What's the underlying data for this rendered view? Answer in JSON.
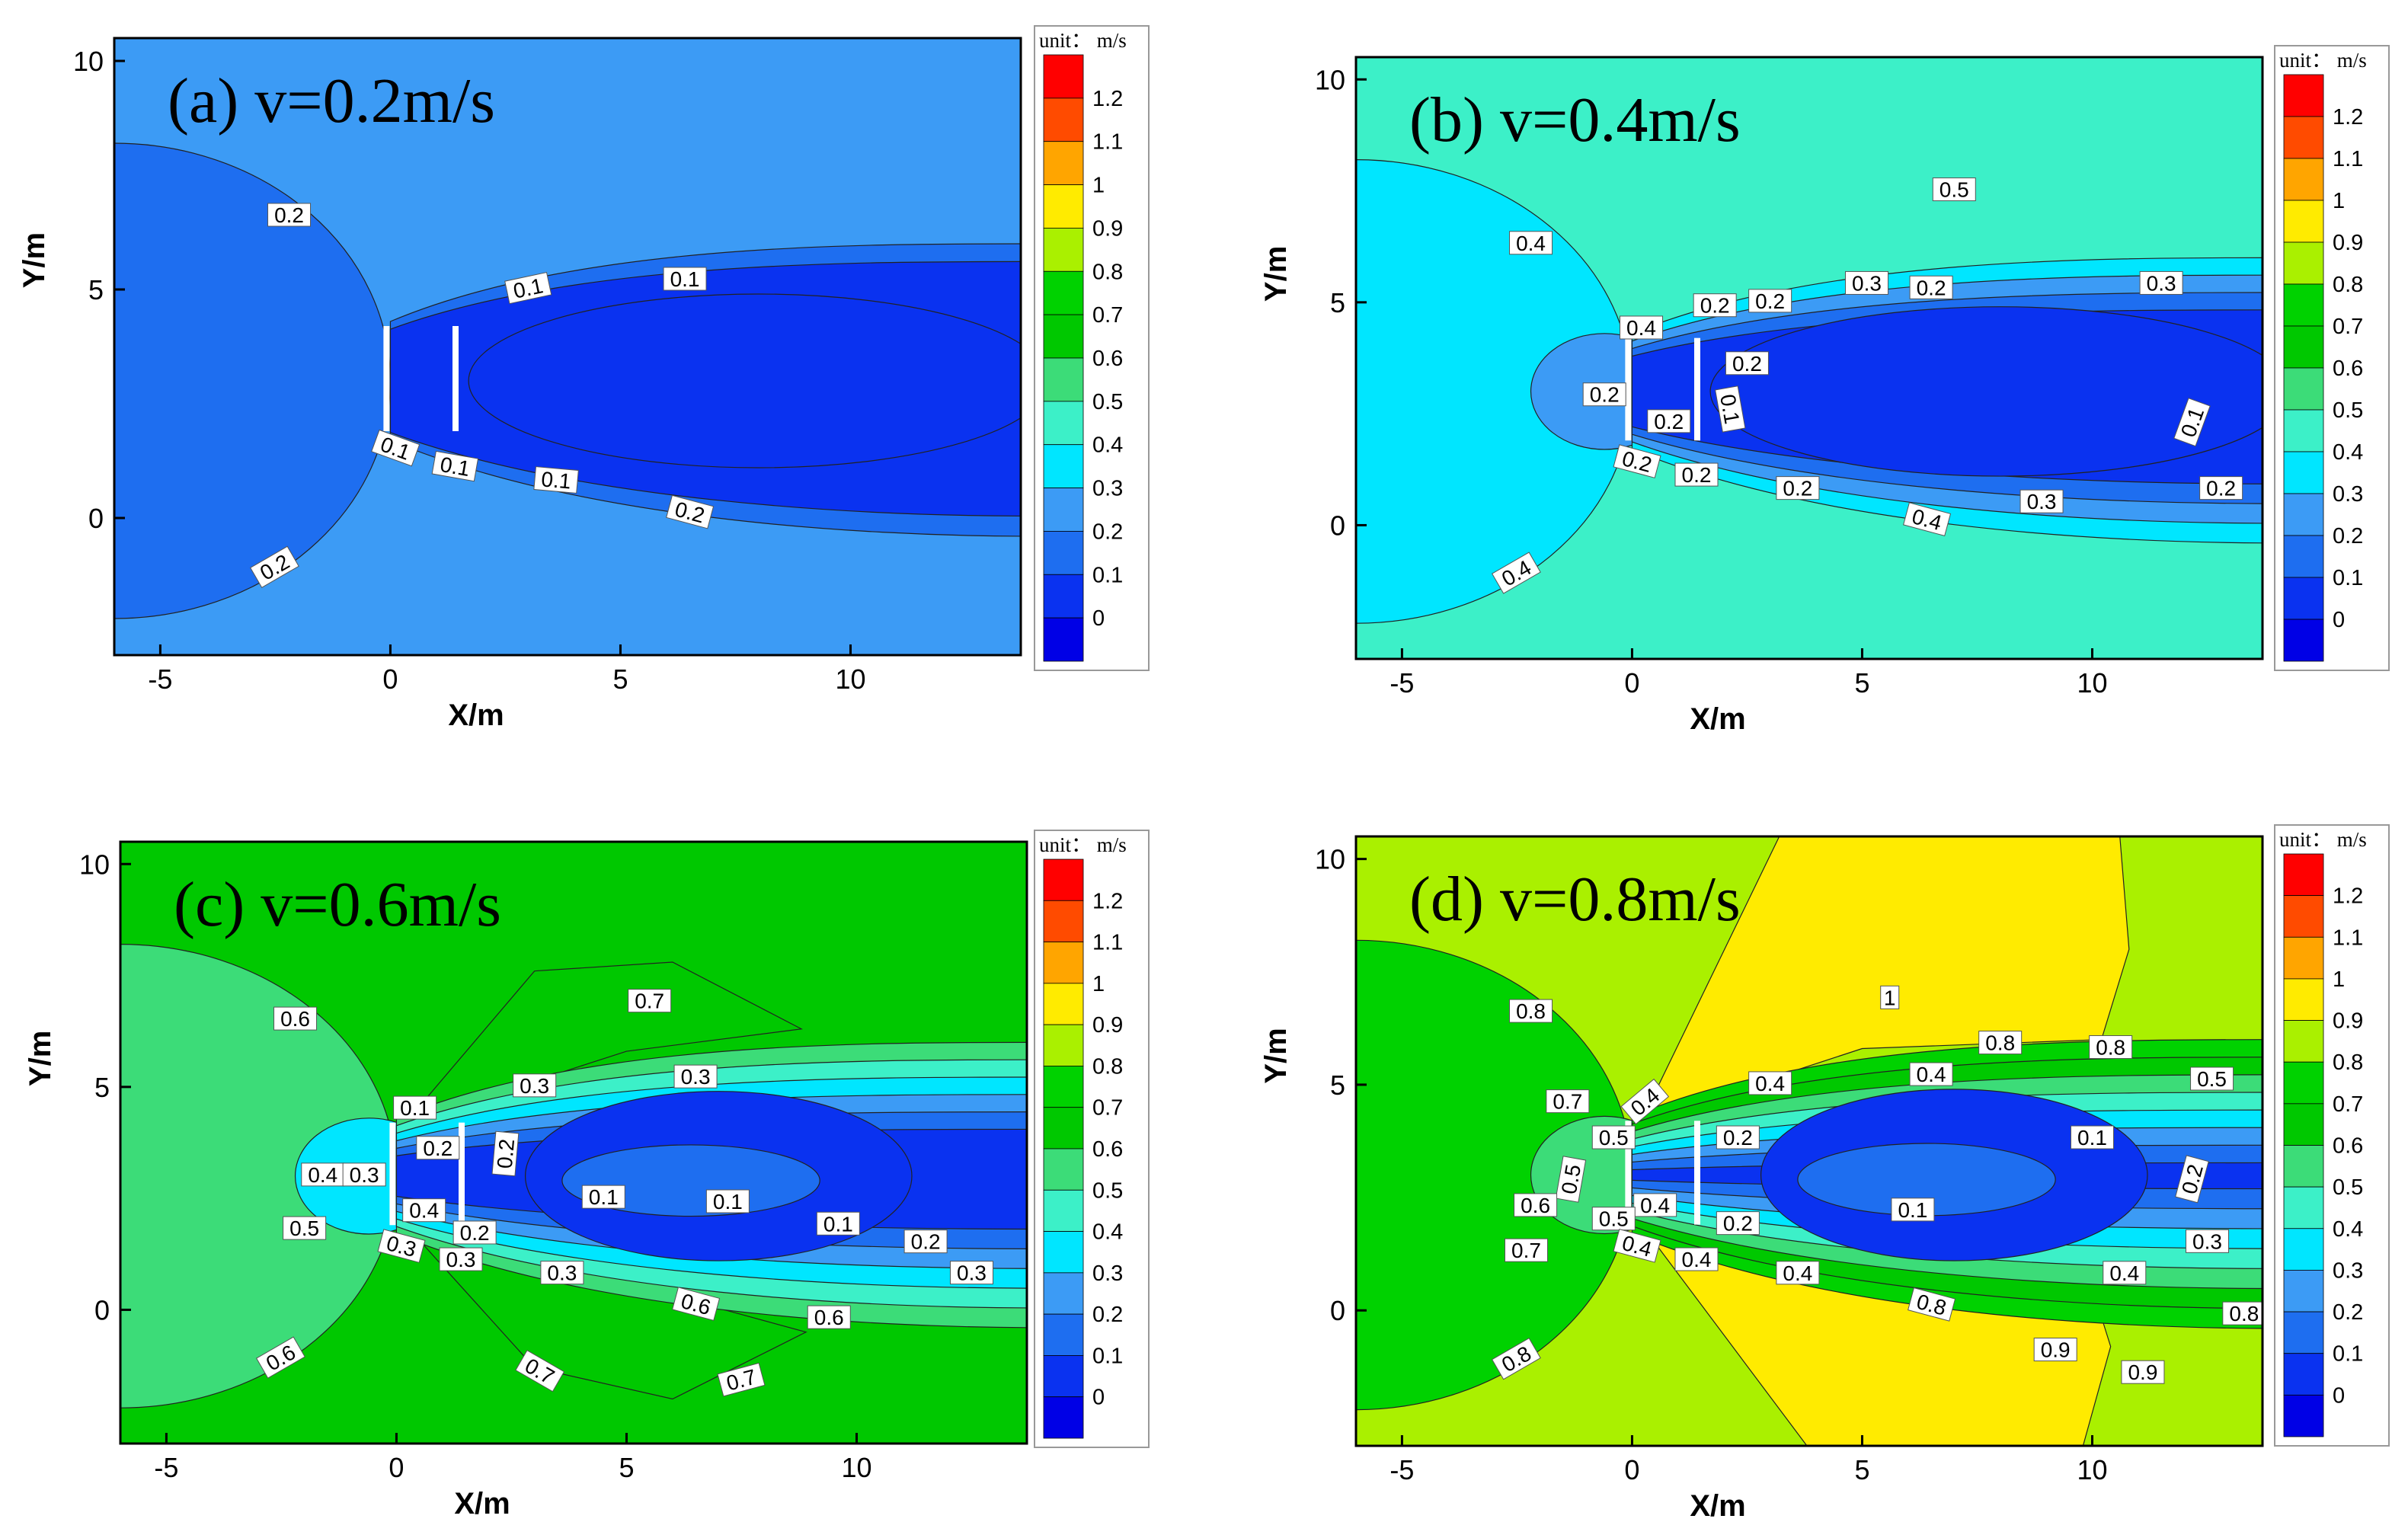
{
  "palette": {
    "0": "#0000e6",
    "0.1": "#0a32f0",
    "0.2": "#1e6ef0",
    "0.3": "#3c9bf5",
    "0.4": "#00e6ff",
    "0.5": "#3cf0c8",
    "0.6": "#3cdc78",
    "0.7": "#00c800",
    "0.8": "#00d200",
    "0.9": "#aaf000",
    "1": "#ffeb00",
    "1.1": "#ffa500",
    "1.2": "#ff4b00",
    "top": "#ff0000"
  },
  "chart_data": [
    {
      "type": "heatmap",
      "id": "a",
      "title": "(a) v=0.2m/s",
      "xlabel": "X/m",
      "ylabel": "Y/m",
      "xlim": [
        -6,
        13.7
      ],
      "ylim": [
        -3,
        10.5
      ],
      "xticks": [
        "-5",
        "0",
        "5",
        "10"
      ],
      "yticks": [
        "0",
        "5",
        "10"
      ],
      "colorbar": {
        "unit": "unit： m/s",
        "levels": [
          "0",
          "0.1",
          "0.2",
          "0.3",
          "0.4",
          "0.5",
          "0.6",
          "0.7",
          "0.8",
          "0.9",
          "1",
          "1.1",
          "1.2"
        ]
      },
      "background_speed": 0.3,
      "contour_labels": [
        {
          "text": "0.2",
          "x": -2.2,
          "y": 6.6,
          "angle": 0
        },
        {
          "text": "0.1",
          "x": 3,
          "y": 5.0,
          "angle": -12
        },
        {
          "text": "0.1",
          "x": 6.4,
          "y": 5.2,
          "angle": 0
        },
        {
          "text": "0.1",
          "x": 0.1,
          "y": 1.5,
          "angle": 20
        },
        {
          "text": "0.1",
          "x": 1.4,
          "y": 1.1,
          "angle": 10
        },
        {
          "text": "0.1",
          "x": 3.6,
          "y": 0.8,
          "angle": 5
        },
        {
          "text": "0.2",
          "x": 6.5,
          "y": 0.1,
          "angle": 15
        },
        {
          "text": "0.2",
          "x": -2.5,
          "y": -1.1,
          "angle": -30
        }
      ]
    },
    {
      "type": "heatmap",
      "id": "b",
      "title": "(b) v=0.4m/s",
      "xlabel": "X/m",
      "ylabel": "Y/m",
      "xlim": [
        -6,
        13.7
      ],
      "ylim": [
        -3,
        10.5
      ],
      "xticks": [
        "-5",
        "0",
        "5",
        "10"
      ],
      "yticks": [
        "0",
        "5",
        "10"
      ],
      "colorbar": {
        "unit": "unit： m/s",
        "levels": [
          "0",
          "0.1",
          "0.2",
          "0.3",
          "0.4",
          "0.5",
          "0.6",
          "0.7",
          "0.8",
          "0.9",
          "1",
          "1.1",
          "1.2"
        ]
      },
      "background_speed": 0.5,
      "contour_labels": [
        {
          "text": "0.5",
          "x": 7,
          "y": 7.5,
          "angle": 0
        },
        {
          "text": "0.4",
          "x": -2.2,
          "y": 6.3,
          "angle": 0
        },
        {
          "text": "0.4",
          "x": 0.2,
          "y": 4.4,
          "angle": 0
        },
        {
          "text": "0.2",
          "x": 1.8,
          "y": 4.9,
          "angle": 0
        },
        {
          "text": "0.2",
          "x": 3,
          "y": 5.0,
          "angle": 0
        },
        {
          "text": "0.3",
          "x": 5.1,
          "y": 5.4,
          "angle": 0
        },
        {
          "text": "0.2",
          "x": 6.5,
          "y": 5.3,
          "angle": 0
        },
        {
          "text": "0.3",
          "x": 11.5,
          "y": 5.4,
          "angle": 0
        },
        {
          "text": "0.2",
          "x": 2.5,
          "y": 3.6,
          "angle": 0
        },
        {
          "text": "0.2",
          "x": -0.6,
          "y": 2.9,
          "angle": 0
        },
        {
          "text": "0.2",
          "x": 0.8,
          "y": 2.3,
          "angle": 0
        },
        {
          "text": "0.1",
          "x": 2.1,
          "y": 2.6,
          "angle": 80
        },
        {
          "text": "0.1",
          "x": 12.2,
          "y": 2.3,
          "angle": -70
        },
        {
          "text": "0.2",
          "x": 0.1,
          "y": 1.4,
          "angle": 15
        },
        {
          "text": "0.2",
          "x": 1.4,
          "y": 1.1,
          "angle": 0
        },
        {
          "text": "0.2",
          "x": 3.6,
          "y": 0.8,
          "angle": 0
        },
        {
          "text": "0.3",
          "x": 8.9,
          "y": 0.5,
          "angle": 0
        },
        {
          "text": "0.4",
          "x": 6.4,
          "y": 0.1,
          "angle": 15
        },
        {
          "text": "0.2",
          "x": 12.8,
          "y": 0.8,
          "angle": 0
        },
        {
          "text": "0.4",
          "x": -2.5,
          "y": -1.1,
          "angle": -30
        }
      ]
    },
    {
      "type": "heatmap",
      "id": "c",
      "title": "(c) v=0.6m/s",
      "xlabel": "X/m",
      "ylabel": "Y/m",
      "xlim": [
        -6,
        13.7
      ],
      "ylim": [
        -3,
        10.5
      ],
      "xticks": [
        "-5",
        "0",
        "5",
        "10"
      ],
      "yticks": [
        "0",
        "5",
        "10"
      ],
      "colorbar": {
        "unit": "unit： m/s",
        "levels": [
          "0",
          "0.1",
          "0.2",
          "0.3",
          "0.4",
          "0.5",
          "0.6",
          "0.7",
          "0.8",
          "0.9",
          "1",
          "1.1",
          "1.2"
        ]
      },
      "background_speed": 0.7,
      "contour_labels": [
        {
          "text": "0.7",
          "x": 5.5,
          "y": 6.9,
          "angle": 0
        },
        {
          "text": "0.6",
          "x": -2.2,
          "y": 6.5,
          "angle": 0
        },
        {
          "text": "0.3",
          "x": 3,
          "y": 5.0,
          "angle": 0
        },
        {
          "text": "0.3",
          "x": 6.5,
          "y": 5.2,
          "angle": 0
        },
        {
          "text": "0.1",
          "x": 0.4,
          "y": 4.5,
          "angle": 0
        },
        {
          "text": "0.2",
          "x": 0.9,
          "y": 3.6,
          "angle": 0
        },
        {
          "text": "0.2",
          "x": 2.4,
          "y": 3.5,
          "angle": -85
        },
        {
          "text": "0.4",
          "x": -1.6,
          "y": 3.0,
          "angle": 0
        },
        {
          "text": "0.3",
          "x": -0.7,
          "y": 3.0,
          "angle": 0
        },
        {
          "text": "0.4",
          "x": 0.6,
          "y": 2.2,
          "angle": 0
        },
        {
          "text": "0.1",
          "x": 4.5,
          "y": 2.5,
          "angle": 0
        },
        {
          "text": "0.1",
          "x": 7.2,
          "y": 2.4,
          "angle": 0
        },
        {
          "text": "0.1",
          "x": 9.6,
          "y": 1.9,
          "angle": 0
        },
        {
          "text": "0.5",
          "x": -2.0,
          "y": 1.8,
          "angle": 0
        },
        {
          "text": "0.2",
          "x": 1.7,
          "y": 1.7,
          "angle": 0
        },
        {
          "text": "0.3",
          "x": 0.1,
          "y": 1.4,
          "angle": 15
        },
        {
          "text": "0.3",
          "x": 1.4,
          "y": 1.1,
          "angle": 0
        },
        {
          "text": "0.2",
          "x": 11.5,
          "y": 1.5,
          "angle": 0
        },
        {
          "text": "0.3",
          "x": 3.6,
          "y": 0.8,
          "angle": 0
        },
        {
          "text": "0.3",
          "x": 12.5,
          "y": 0.8,
          "angle": 0
        },
        {
          "text": "0.6",
          "x": 6.5,
          "y": 0.1,
          "angle": 15
        },
        {
          "text": "0.6",
          "x": 9.4,
          "y": -0.2,
          "angle": 0
        },
        {
          "text": "0.6",
          "x": -2.5,
          "y": -1.1,
          "angle": -30
        },
        {
          "text": "0.7",
          "x": 3.1,
          "y": -1.4,
          "angle": 30
        },
        {
          "text": "0.7",
          "x": 7.5,
          "y": -1.6,
          "angle": -15
        }
      ]
    },
    {
      "type": "heatmap",
      "id": "d",
      "title": "(d) v=0.8m/s",
      "xlabel": "X/m",
      "ylabel": "Y/m",
      "xlim": [
        -6,
        13.7
      ],
      "ylim": [
        -3,
        10.5
      ],
      "xticks": [
        "-5",
        "0",
        "5",
        "10"
      ],
      "yticks": [
        "0",
        "5",
        "10"
      ],
      "colorbar": {
        "unit": "unit： m/s",
        "levels": [
          "0",
          "0.1",
          "0.2",
          "0.3",
          "0.4",
          "0.5",
          "0.6",
          "0.7",
          "0.8",
          "0.9",
          "1",
          "1.1",
          "1.2"
        ]
      },
      "background_speed": 0.9,
      "contour_labels": [
        {
          "text": "1",
          "x": 5.6,
          "y": 6.9,
          "angle": 0
        },
        {
          "text": "0.8",
          "x": -2.2,
          "y": 6.6,
          "angle": 0
        },
        {
          "text": "0.8",
          "x": 8.0,
          "y": 5.9,
          "angle": 0
        },
        {
          "text": "0.8",
          "x": 10.4,
          "y": 5.8,
          "angle": 0
        },
        {
          "text": "0.7",
          "x": -1.4,
          "y": 4.6,
          "angle": 0
        },
        {
          "text": "0.4",
          "x": 0.3,
          "y": 4.6,
          "angle": -40
        },
        {
          "text": "0.4",
          "x": 3,
          "y": 5.0,
          "angle": 0
        },
        {
          "text": "0.4",
          "x": 6.5,
          "y": 5.2,
          "angle": 0
        },
        {
          "text": "0.5",
          "x": 12.6,
          "y": 5.1,
          "angle": 0
        },
        {
          "text": "0.5",
          "x": -0.4,
          "y": 3.8,
          "angle": 0
        },
        {
          "text": "0.2",
          "x": 2.3,
          "y": 3.8,
          "angle": 0
        },
        {
          "text": "0.1",
          "x": 10,
          "y": 3.8,
          "angle": 0
        },
        {
          "text": "0.5",
          "x": -1.3,
          "y": 2.9,
          "angle": -80
        },
        {
          "text": "0.2",
          "x": 12.2,
          "y": 2.9,
          "angle": -75
        },
        {
          "text": "0.4",
          "x": 0.5,
          "y": 2.3,
          "angle": 0
        },
        {
          "text": "0.1",
          "x": 6.1,
          "y": 2.2,
          "angle": 0
        },
        {
          "text": "0.6",
          "x": -2.1,
          "y": 2.3,
          "angle": 0
        },
        {
          "text": "0.5",
          "x": -0.4,
          "y": 2.0,
          "angle": 0
        },
        {
          "text": "0.2",
          "x": 2.3,
          "y": 1.9,
          "angle": 0
        },
        {
          "text": "0.3",
          "x": 12.5,
          "y": 1.5,
          "angle": 0
        },
        {
          "text": "0.7",
          "x": -2.3,
          "y": 1.3,
          "angle": 0
        },
        {
          "text": "0.4",
          "x": 0.1,
          "y": 1.4,
          "angle": 15
        },
        {
          "text": "0.4",
          "x": 1.4,
          "y": 1.1,
          "angle": 0
        },
        {
          "text": "0.4",
          "x": 3.6,
          "y": 0.8,
          "angle": 0
        },
        {
          "text": "0.4",
          "x": 10.7,
          "y": 0.8,
          "angle": 0
        },
        {
          "text": "0.8",
          "x": 6.5,
          "y": 0.1,
          "angle": 15
        },
        {
          "text": "0.8",
          "x": 13.3,
          "y": -0.1,
          "angle": 0
        },
        {
          "text": "0.9",
          "x": 9.2,
          "y": -0.9,
          "angle": 0
        },
        {
          "text": "0.9",
          "x": 11.1,
          "y": -1.4,
          "angle": 0
        },
        {
          "text": "0.8",
          "x": -2.5,
          "y": -1.1,
          "angle": -30
        }
      ]
    }
  ]
}
